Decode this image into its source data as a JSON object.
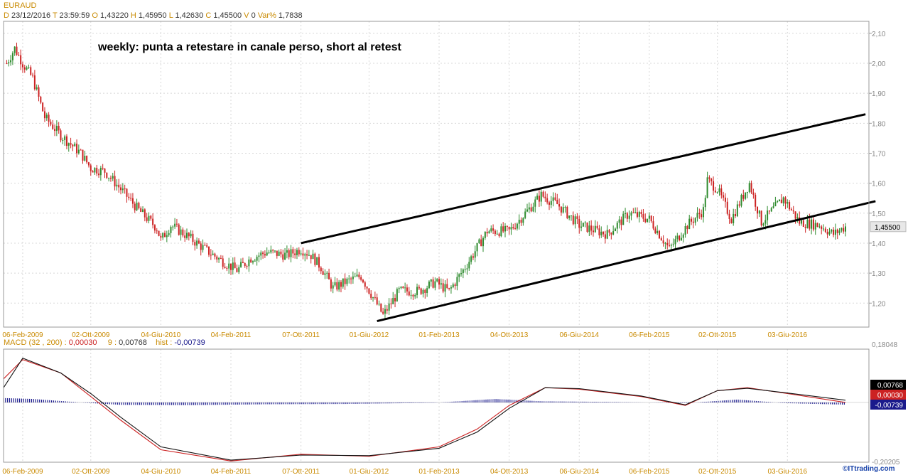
{
  "header": {
    "symbol": "EURAUD",
    "d_label": "D",
    "date": "23/12/2016",
    "t_label": "T",
    "time": "23:59:59",
    "o_label": "O",
    "open": "1,43220",
    "h_label": "H",
    "high": "1,45950",
    "l_label": "L",
    "low": "1,42630",
    "c_label": "C",
    "close": "1,45500",
    "v_label": "V",
    "volume": "0",
    "var_label": "Var%",
    "var": "1,7838"
  },
  "annotation": "weekly: punta a retestare in canale perso, short al retest",
  "price_axis": {
    "ticks": [
      "1,20",
      "1,30",
      "1,40",
      "1,50",
      "1,60",
      "1,70",
      "1,80",
      "1,90",
      "2,00",
      "2,10"
    ],
    "last_price": "1,45500"
  },
  "date_axis": {
    "ticks": [
      "06-Feb-2009",
      "02-Ott-2009",
      "04-Giu-2010",
      "04-Feb-2011",
      "07-Ott-2011",
      "01-Giu-2012",
      "01-Feb-2013",
      "04-Ott-2013",
      "06-Giu-2014",
      "06-Feb-2015",
      "02-Ott-2015",
      "03-Giu-2016"
    ]
  },
  "macd_header": {
    "name": "MACD",
    "params": "(32 , 200) :",
    "macd": "0,00030",
    "signal_label": "9 :",
    "signal": "0,00768",
    "hist_label": "hist :",
    "hist": "-0,00739"
  },
  "macd_axis": {
    "top": "0,18048",
    "bottom": "-0,20205",
    "labels": {
      "signal": "0,00768",
      "macd": "0,00030",
      "hist": "-0,00739"
    }
  },
  "footer": {
    "brand": "©ITtrading.com"
  },
  "colors": {
    "up": "#2e8b2e",
    "down": "#cc2222",
    "grid": "#d8d8d8",
    "tick": "#c98a00",
    "macd": "#cc2222",
    "signal": "#111111",
    "hist": "#1a1a8c"
  },
  "chart_data": [
    {
      "type": "candlestick",
      "title": "EURAUD",
      "period": "weekly",
      "ylim": [
        1.12,
        2.14
      ],
      "xlim": [
        "2008-12-01",
        "2017-03-15"
      ],
      "price_path": [
        [
          "2008-12-12",
          2.0
        ],
        [
          "2009-01-09",
          2.05
        ],
        [
          "2009-02-06",
          2.0
        ],
        [
          "2009-03-13",
          1.95
        ],
        [
          "2009-04-24",
          1.82
        ],
        [
          "2009-06-19",
          1.76
        ],
        [
          "2009-08-28",
          1.7
        ],
        [
          "2009-10-02",
          1.65
        ],
        [
          "2009-11-20",
          1.64
        ],
        [
          "2010-01-15",
          1.58
        ],
        [
          "2010-03-19",
          1.51
        ],
        [
          "2010-05-21",
          1.45
        ],
        [
          "2010-06-04",
          1.41
        ],
        [
          "2010-07-09",
          1.46
        ],
        [
          "2010-09-10",
          1.42
        ],
        [
          "2010-11-19",
          1.37
        ],
        [
          "2011-01-21",
          1.33
        ],
        [
          "2011-02-25",
          1.31
        ],
        [
          "2011-04-15",
          1.35
        ],
        [
          "2011-06-10",
          1.37
        ],
        [
          "2011-08-19",
          1.36
        ],
        [
          "2011-10-07",
          1.38
        ],
        [
          "2011-11-11",
          1.36
        ],
        [
          "2011-12-16",
          1.32
        ],
        [
          "2012-01-27",
          1.25
        ],
        [
          "2012-03-09",
          1.27
        ],
        [
          "2012-05-04",
          1.29
        ],
        [
          "2012-07-20",
          1.16
        ],
        [
          "2012-09-14",
          1.24
        ],
        [
          "2012-11-23",
          1.24
        ],
        [
          "2013-01-18",
          1.27
        ],
        [
          "2013-03-08",
          1.24
        ],
        [
          "2013-05-10",
          1.33
        ],
        [
          "2013-07-19",
          1.44
        ],
        [
          "2013-10-04",
          1.44
        ],
        [
          "2014-01-24",
          1.56
        ],
        [
          "2014-03-21",
          1.53
        ],
        [
          "2014-06-06",
          1.46
        ],
        [
          "2014-09-12",
          1.43
        ],
        [
          "2014-11-28",
          1.5
        ],
        [
          "2015-02-06",
          1.48
        ],
        [
          "2015-04-17",
          1.38
        ],
        [
          "2015-06-19",
          1.46
        ],
        [
          "2015-08-14",
          1.51
        ],
        [
          "2015-08-28",
          1.61
        ],
        [
          "2015-10-02",
          1.58
        ],
        [
          "2015-11-20",
          1.48
        ],
        [
          "2016-01-22",
          1.6
        ],
        [
          "2016-03-04",
          1.47
        ],
        [
          "2016-05-20",
          1.55
        ],
        [
          "2016-07-15",
          1.47
        ],
        [
          "2016-09-23",
          1.46
        ],
        [
          "2016-11-11",
          1.43
        ],
        [
          "2016-12-23",
          1.455
        ]
      ],
      "trendlines": [
        {
          "from": [
            "2011-10-07",
            1.4
          ],
          "to": [
            "2017-03-03",
            1.83
          ]
        },
        {
          "from": [
            "2012-06-29",
            1.14
          ],
          "to": [
            "2017-04-07",
            1.54
          ]
        }
      ]
    },
    {
      "type": "line",
      "title": "MACD",
      "ylim": [
        -0.20205,
        0.18048
      ],
      "series": [
        {
          "name": "MACD",
          "points": [
            [
              "2008-12-01",
              0.08
            ],
            [
              "2009-02-06",
              0.145
            ],
            [
              "2009-06-19",
              0.1
            ],
            [
              "2009-10-02",
              0.02
            ],
            [
              "2010-01-15",
              -0.06
            ],
            [
              "2010-06-04",
              -0.16
            ],
            [
              "2011-02-04",
              -0.198
            ],
            [
              "2011-10-07",
              -0.175
            ],
            [
              "2012-06-01",
              -0.182
            ],
            [
              "2013-02-01",
              -0.15
            ],
            [
              "2013-06-14",
              -0.09
            ],
            [
              "2013-10-04",
              -0.01
            ],
            [
              "2014-02-07",
              0.05
            ],
            [
              "2014-06-06",
              0.045
            ],
            [
              "2015-01-09",
              0.02
            ],
            [
              "2015-06-12",
              -0.01
            ],
            [
              "2015-10-02",
              0.04
            ],
            [
              "2016-01-15",
              0.05
            ],
            [
              "2016-06-03",
              0.03
            ],
            [
              "2016-12-23",
              0.0003
            ]
          ]
        },
        {
          "name": "9",
          "points": [
            [
              "2008-12-01",
              0.05
            ],
            [
              "2009-02-06",
              0.15
            ],
            [
              "2009-06-19",
              0.1
            ],
            [
              "2009-10-02",
              0.03
            ],
            [
              "2010-01-15",
              -0.05
            ],
            [
              "2010-06-04",
              -0.15
            ],
            [
              "2011-02-04",
              -0.195
            ],
            [
              "2011-10-07",
              -0.178
            ],
            [
              "2012-06-01",
              -0.18
            ],
            [
              "2013-02-01",
              -0.155
            ],
            [
              "2013-06-14",
              -0.1
            ],
            [
              "2013-10-04",
              -0.02
            ],
            [
              "2014-02-07",
              0.05
            ],
            [
              "2014-06-06",
              0.047
            ],
            [
              "2015-01-09",
              0.022
            ],
            [
              "2015-06-12",
              -0.008
            ],
            [
              "2015-10-02",
              0.04
            ],
            [
              "2016-01-15",
              0.048
            ],
            [
              "2016-06-03",
              0.032
            ],
            [
              "2016-12-23",
              0.00768
            ]
          ]
        },
        {
          "name": "hist",
          "type": "bar",
          "points": [
            [
              "2008-12-01",
              0.015
            ],
            [
              "2009-03-13",
              0.012
            ],
            [
              "2009-08-28",
              0.0
            ],
            [
              "2010-01-15",
              -0.008
            ],
            [
              "2010-09-10",
              -0.009
            ],
            [
              "2011-06-10",
              -0.006
            ],
            [
              "2012-03-09",
              -0.005
            ],
            [
              "2013-01-18",
              -0.001
            ],
            [
              "2013-08-16",
              0.012
            ],
            [
              "2014-01-24",
              0.004
            ],
            [
              "2014-09-12",
              0.002
            ],
            [
              "2015-06-19",
              -0.002
            ],
            [
              "2015-12-11",
              0.01
            ],
            [
              "2016-05-20",
              -0.002
            ],
            [
              "2016-12-23",
              -0.00739
            ]
          ]
        }
      ]
    }
  ]
}
